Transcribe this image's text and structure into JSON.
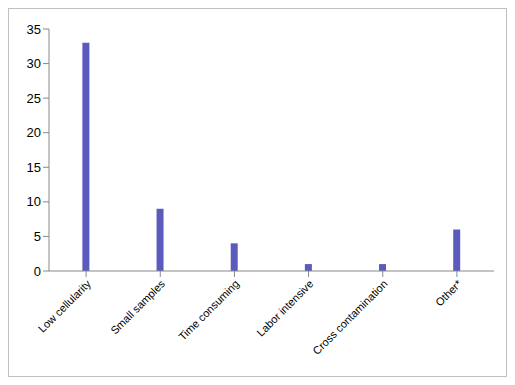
{
  "chart_data": {
    "type": "bar",
    "categories": [
      "Low cellularity",
      "Small samples",
      "Time consuming",
      "Labor intensive",
      "Cross contamination",
      "Other*"
    ],
    "values": [
      33,
      9,
      4,
      1,
      1,
      6
    ],
    "color": "#5b5bbd",
    "ylim": [
      0,
      35
    ],
    "yticks": [
      0,
      5,
      10,
      15,
      20,
      25,
      30,
      35
    ],
    "grid": false
  }
}
